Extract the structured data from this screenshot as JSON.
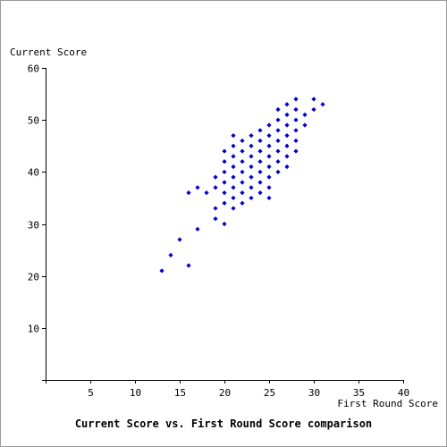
{
  "chart_data": {
    "type": "scatter",
    "title": "Current Score vs. First Round Score comparison",
    "xlabel": "First Round Score",
    "ylabel": "Current Score",
    "xlim": [
      0,
      40
    ],
    "ylim": [
      0,
      60
    ],
    "x_ticks": [
      5,
      10,
      15,
      20,
      25,
      30,
      35,
      40
    ],
    "y_ticks": [
      10,
      20,
      30,
      40,
      50,
      60
    ],
    "grid": false,
    "marker_color": "#0000cc",
    "points": [
      [
        13,
        21
      ],
      [
        14,
        24
      ],
      [
        15,
        27
      ],
      [
        16,
        22
      ],
      [
        16,
        36
      ],
      [
        17,
        29
      ],
      [
        17,
        37
      ],
      [
        18,
        36
      ],
      [
        19,
        31
      ],
      [
        19,
        33
      ],
      [
        19,
        37
      ],
      [
        19,
        39
      ],
      [
        20,
        30
      ],
      [
        20,
        34
      ],
      [
        20,
        36
      ],
      [
        20,
        38
      ],
      [
        20,
        40
      ],
      [
        20,
        42
      ],
      [
        20,
        44
      ],
      [
        21,
        33
      ],
      [
        21,
        35
      ],
      [
        21,
        37
      ],
      [
        21,
        39
      ],
      [
        21,
        41
      ],
      [
        21,
        43
      ],
      [
        21,
        45
      ],
      [
        21,
        47
      ],
      [
        22,
        34
      ],
      [
        22,
        36
      ],
      [
        22,
        38
      ],
      [
        22,
        40
      ],
      [
        22,
        42
      ],
      [
        22,
        44
      ],
      [
        22,
        46
      ],
      [
        23,
        35
      ],
      [
        23,
        37
      ],
      [
        23,
        39
      ],
      [
        23,
        41
      ],
      [
        23,
        43
      ],
      [
        23,
        45
      ],
      [
        23,
        47
      ],
      [
        24,
        36
      ],
      [
        24,
        38
      ],
      [
        24,
        40
      ],
      [
        24,
        42
      ],
      [
        24,
        44
      ],
      [
        24,
        46
      ],
      [
        24,
        48
      ],
      [
        25,
        35
      ],
      [
        25,
        37
      ],
      [
        25,
        39
      ],
      [
        25,
        41
      ],
      [
        25,
        43
      ],
      [
        25,
        45
      ],
      [
        25,
        47
      ],
      [
        25,
        49
      ],
      [
        26,
        40
      ],
      [
        26,
        42
      ],
      [
        26,
        44
      ],
      [
        26,
        46
      ],
      [
        26,
        48
      ],
      [
        26,
        50
      ],
      [
        26,
        52
      ],
      [
        27,
        41
      ],
      [
        27,
        43
      ],
      [
        27,
        45
      ],
      [
        27,
        47
      ],
      [
        27,
        49
      ],
      [
        27,
        51
      ],
      [
        27,
        53
      ],
      [
        28,
        44
      ],
      [
        28,
        46
      ],
      [
        28,
        48
      ],
      [
        28,
        50
      ],
      [
        28,
        52
      ],
      [
        28,
        54
      ],
      [
        29,
        49
      ],
      [
        29,
        51
      ],
      [
        30,
        52
      ],
      [
        30,
        54
      ],
      [
        31,
        53
      ]
    ]
  }
}
